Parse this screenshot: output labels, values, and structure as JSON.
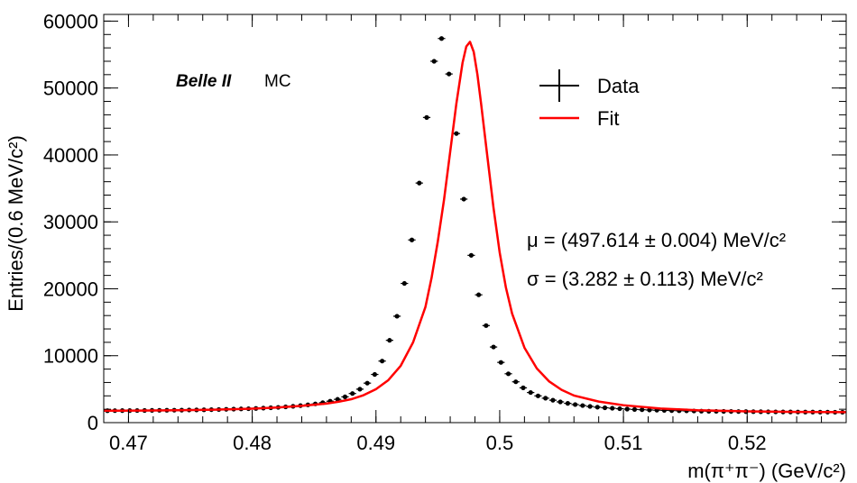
{
  "chart_data": {
    "type": "scatter",
    "title": "",
    "xlabel": "m(π⁺π⁻) (GeV/c²)",
    "ylabel": "Entries/(0.6 MeV/c²)",
    "xlim": [
      0.468,
      0.528
    ],
    "ylim": [
      0,
      61000
    ],
    "xticks": [
      0.47,
      0.48,
      0.49,
      0.5,
      0.51,
      0.52
    ],
    "xtick_labels": [
      "0.47",
      "0.48",
      "0.49",
      "0.5",
      "0.51",
      "0.52"
    ],
    "yticks": [
      0,
      10000,
      20000,
      30000,
      40000,
      50000,
      60000
    ],
    "ytick_labels": [
      "0",
      "10000",
      "20000",
      "30000",
      "40000",
      "50000",
      "60000"
    ],
    "bin_width": 0.0006,
    "experiment_label": "Belle II",
    "sim_label": "MC",
    "annotations": [
      "μ = (497.614 ± 0.004) MeV/c²",
      "σ = (3.282 ± 0.113) MeV/c²"
    ],
    "legend": [
      {
        "name": "Data",
        "style": "points-with-errors",
        "color": "#000000"
      },
      {
        "name": "Fit",
        "style": "line",
        "color": "#ff0000"
      }
    ],
    "series": [
      {
        "name": "Data",
        "x": [
          0.4683,
          0.4689,
          0.4695,
          0.4701,
          0.4707,
          0.4713,
          0.4719,
          0.4725,
          0.4731,
          0.4737,
          0.4743,
          0.4749,
          0.4755,
          0.4761,
          0.4767,
          0.4773,
          0.4779,
          0.4785,
          0.4791,
          0.4797,
          0.4803,
          0.4809,
          0.4815,
          0.4821,
          0.4827,
          0.4833,
          0.4839,
          0.4845,
          0.4851,
          0.4857,
          0.4863,
          0.4869,
          0.4875,
          0.4881,
          0.4887,
          0.4893,
          0.4899,
          0.4905,
          0.4911,
          0.4917,
          0.4923,
          0.4929,
          0.4935,
          0.4941,
          0.4947,
          0.4953,
          0.4959,
          0.4965,
          0.4971,
          0.4977,
          0.4983,
          0.4989,
          0.4995,
          0.5001,
          0.5007,
          0.5013,
          0.5019,
          0.5025,
          0.5031,
          0.5037,
          0.5043,
          0.5049,
          0.5055,
          0.5061,
          0.5067,
          0.5073,
          0.5079,
          0.5085,
          0.5091,
          0.5097,
          0.5103,
          0.5109,
          0.5115,
          0.5121,
          0.5127,
          0.5133,
          0.5139,
          0.5145,
          0.5151,
          0.5157,
          0.5163,
          0.5169,
          0.5175,
          0.5181,
          0.5187,
          0.5193,
          0.5199,
          0.5205,
          0.5211,
          0.5217,
          0.5223,
          0.5229,
          0.5235,
          0.5241,
          0.5247,
          0.5253,
          0.5259,
          0.5265,
          0.5271,
          0.5277
        ],
        "values": [
          1780,
          1790,
          1800,
          1800,
          1810,
          1820,
          1830,
          1840,
          1850,
          1860,
          1870,
          1890,
          1900,
          1920,
          1940,
          1960,
          1990,
          2020,
          2050,
          2080,
          2120,
          2170,
          2220,
          2280,
          2360,
          2440,
          2540,
          2660,
          2800,
          2980,
          3200,
          3480,
          3850,
          4350,
          5000,
          5900,
          7200,
          9200,
          12300,
          15900,
          20800,
          27300,
          35800,
          45600,
          54000,
          57400,
          52100,
          43200,
          33400,
          25000,
          19100,
          14500,
          11300,
          9000,
          7300,
          6100,
          5200,
          4500,
          4000,
          3650,
          3350,
          3100,
          2880,
          2700,
          2550,
          2420,
          2310,
          2220,
          2150,
          2080,
          2020,
          1970,
          1930,
          1890,
          1860,
          1830,
          1800,
          1780,
          1760,
          1740,
          1720,
          1700,
          1690,
          1680,
          1670,
          1660,
          1650,
          1640,
          1630,
          1620,
          1610,
          1600,
          1600,
          1590,
          1580,
          1580,
          1570,
          1570,
          1560,
          1560
        ],
        "errors": [
          60,
          60,
          60,
          60,
          60,
          60,
          60,
          60,
          60,
          60,
          60,
          60,
          60,
          60,
          60,
          60,
          60,
          60,
          60,
          60,
          60,
          60,
          60,
          60,
          60,
          60,
          60,
          60,
          60,
          60,
          60,
          60,
          70,
          70,
          80,
          90,
          100,
          110,
          130,
          150,
          170,
          190,
          220,
          240,
          260,
          260,
          250,
          230,
          210,
          180,
          160,
          140,
          120,
          110,
          100,
          90,
          80,
          80,
          70,
          70,
          70,
          60,
          60,
          60,
          60,
          60,
          60,
          60,
          60,
          60,
          60,
          60,
          60,
          60,
          60,
          60,
          60,
          60,
          60,
          60,
          60,
          60,
          60,
          60,
          60,
          60,
          60,
          60,
          60,
          60,
          60,
          60,
          60,
          60,
          60,
          60,
          60,
          60,
          60,
          60
        ]
      },
      {
        "name": "Fit",
        "type": "line",
        "x": [
          0.468,
          0.471,
          0.474,
          0.477,
          0.48,
          0.482,
          0.484,
          0.486,
          0.487,
          0.488,
          0.489,
          0.49,
          0.491,
          0.492,
          0.493,
          0.494,
          0.4945,
          0.495,
          0.4955,
          0.496,
          0.4965,
          0.497,
          0.4973,
          0.4976,
          0.4979,
          0.4982,
          0.4985,
          0.499,
          0.4995,
          0.5,
          0.5005,
          0.501,
          0.502,
          0.503,
          0.504,
          0.505,
          0.506,
          0.508,
          0.51,
          0.513,
          0.516,
          0.52,
          0.524,
          0.528
        ],
        "values": [
          1780,
          1800,
          1850,
          1940,
          2080,
          2250,
          2500,
          2850,
          3130,
          3500,
          4100,
          5000,
          6350,
          8500,
          12000,
          17300,
          21700,
          27100,
          33300,
          40500,
          47700,
          53800,
          56200,
          56900,
          55400,
          52000,
          47600,
          39800,
          32100,
          25400,
          20200,
          16300,
          11200,
          8100,
          6150,
          4900,
          4050,
          3150,
          2600,
          2100,
          1850,
          1680,
          1600,
          1560
        ]
      }
    ]
  }
}
